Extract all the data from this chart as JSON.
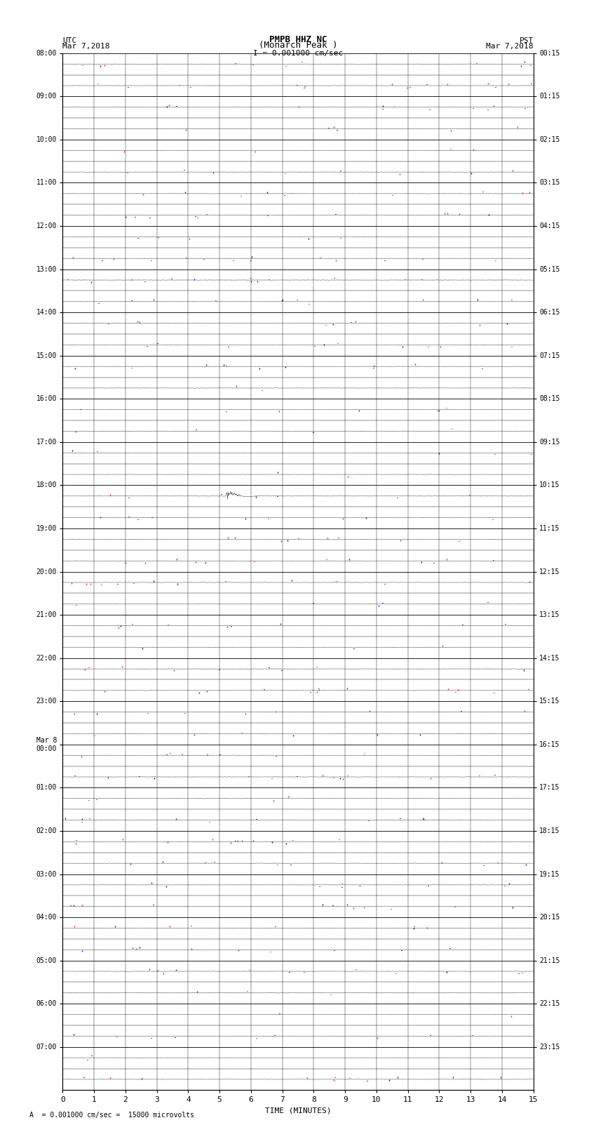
{
  "title_line1": "PMPB HHZ NC",
  "title_line2": "(Monarch Peak )",
  "title_line3": "I = 0.001000 cm/sec",
  "left_label_top": "UTC",
  "left_label_date": "Mar 7,2018",
  "right_label_top": "PST",
  "right_label_date": "Mar 7,2018",
  "bottom_label": "TIME (MINUTES)",
  "footer_text": "A  = 0.001000 cm/sec =  15000 microvolts",
  "utc_times": [
    "08:00",
    "09:00",
    "10:00",
    "11:00",
    "12:00",
    "13:00",
    "14:00",
    "15:00",
    "16:00",
    "17:00",
    "18:00",
    "19:00",
    "20:00",
    "21:00",
    "22:00",
    "23:00",
    "Mar 8\n00:00",
    "01:00",
    "02:00",
    "03:00",
    "04:00",
    "05:00",
    "06:00",
    "07:00"
  ],
  "pst_times": [
    "00:15",
    "01:15",
    "02:15",
    "03:15",
    "04:15",
    "05:15",
    "06:15",
    "07:15",
    "08:15",
    "09:15",
    "10:15",
    "11:15",
    "12:15",
    "13:15",
    "14:15",
    "15:15",
    "16:15",
    "17:15",
    "18:15",
    "19:15",
    "20:15",
    "21:15",
    "22:15",
    "23:15"
  ],
  "n_rows": 48,
  "n_minutes": 15,
  "background_color": "#ffffff",
  "grid_color": "#000000",
  "minor_grid_color": "#888888",
  "noise_amplitude": 0.004,
  "earthquake_row": 20,
  "earthquake_minute": 5.2,
  "earthquake_duration": 1.8,
  "earthquake_amplitude": 0.28,
  "spike_density": 0.0015,
  "spike_amplitude": 0.08,
  "spike_colors": [
    "red",
    "blue",
    "green",
    "black"
  ]
}
